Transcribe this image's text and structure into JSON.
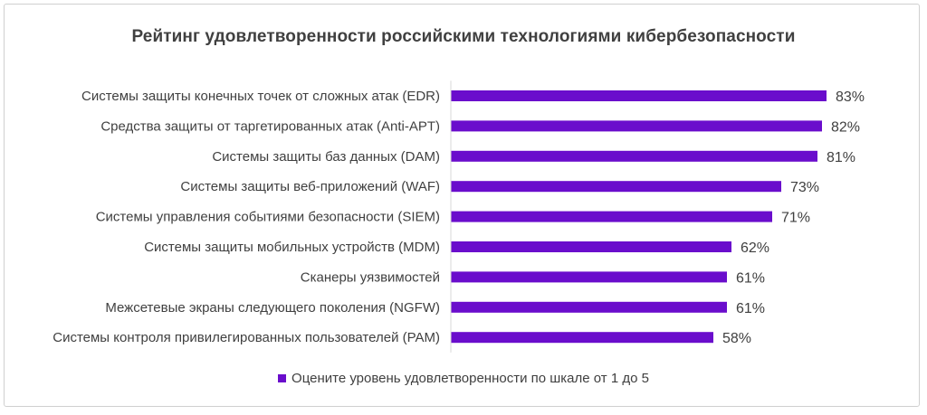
{
  "chart_data": {
    "type": "bar",
    "orientation": "horizontal",
    "title": "Рейтинг удовлетворенности российскими технологиями кибербезопасности",
    "categories": [
      "Системы защиты конечных точек от сложных атак (EDR)",
      "Средства защиты от таргетированных атак (Anti-APT)",
      "Системы защиты баз данных (DAM)",
      "Системы защиты веб-приложений (WAF)",
      "Системы управления событиями безопасности (SIEM)",
      "Системы защиты мобильных устройств (MDM)",
      "Сканеры уязвимостей",
      "Межсетевые экраны следующего поколения (NGFW)",
      "Системы контроля привилегированных пользователей (PAM)"
    ],
    "series": [
      {
        "name": "Оцените уровень удовлетворенности по шкале от 1 до 5",
        "values": [
          83,
          82,
          81,
          73,
          71,
          62,
          61,
          61,
          58
        ],
        "labels": [
          "83%",
          "82%",
          "81%",
          "73%",
          "71%",
          "62%",
          "61%",
          "61%",
          "58%"
        ],
        "color": "#6a0dcc"
      }
    ],
    "xlim": [
      0,
      100
    ],
    "grid": false,
    "legend_position": "bottom"
  }
}
